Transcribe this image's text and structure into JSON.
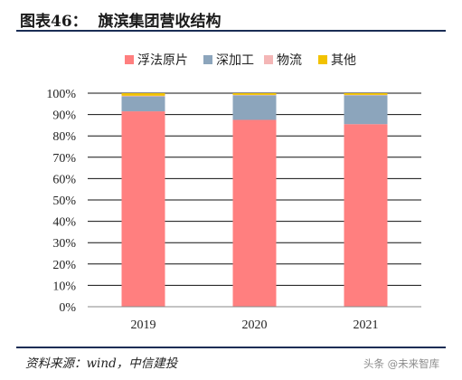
{
  "header": {
    "title": "图表46：  旗滨集团营收结构"
  },
  "footer": {
    "source": "资料来源：wind，中信建投",
    "watermark": "头条 @未来智库"
  },
  "chart_data": {
    "type": "bar",
    "stacked": true,
    "percent_stacked": true,
    "categories": [
      "2019",
      "2020",
      "2021"
    ],
    "series": [
      {
        "name": "浮法原片",
        "color": "#FF7F7F",
        "values": [
          91.5,
          87.5,
          85.5
        ]
      },
      {
        "name": "深加工",
        "color": "#8CA5BC",
        "values": [
          7.0,
          11.5,
          13.5
        ]
      },
      {
        "name": "物流",
        "color": "#F4B6B6",
        "values": [
          0.3,
          0.2,
          0.2
        ]
      },
      {
        "name": "其他",
        "color": "#F2C200",
        "values": [
          1.2,
          0.8,
          0.8
        ]
      }
    ],
    "yticks": [
      "0%",
      "10%",
      "20%",
      "30%",
      "40%",
      "50%",
      "60%",
      "70%",
      "80%",
      "90%",
      "100%"
    ],
    "ylim": [
      0,
      100
    ],
    "grid": true,
    "legend_position": "top"
  }
}
